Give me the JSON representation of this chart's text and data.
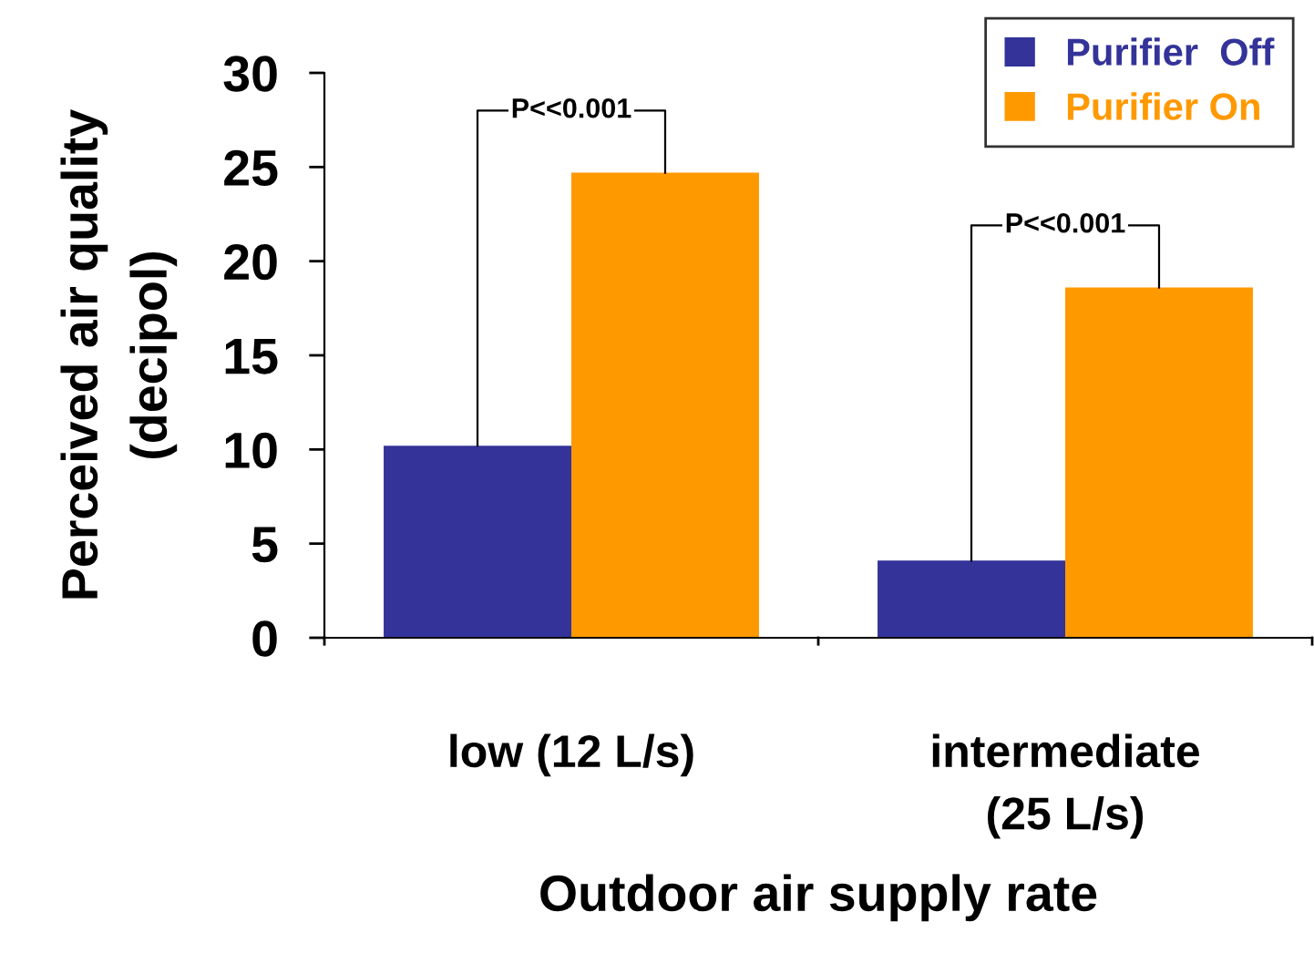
{
  "chart_data": {
    "type": "bar",
    "categories": [
      "low (12 L/s)",
      "intermediate\n(25 L/s)"
    ],
    "series": [
      {
        "name": "Purifier  Off",
        "color": "#333399",
        "values": [
          10.2,
          4.1
        ]
      },
      {
        "name": "Purifier On",
        "color": "#ff9900",
        "values": [
          24.7,
          18.6
        ]
      }
    ],
    "xlabel": "Outdoor air supply rate",
    "ylabel": "Perceived air quality\n(decipol)",
    "ylim": [
      0,
      30
    ],
    "yticks": [
      0,
      5,
      10,
      15,
      20,
      25,
      30
    ],
    "grid": false,
    "legend": "top right",
    "annotations": [
      "P<<0.001",
      "P<<0.001"
    ]
  }
}
